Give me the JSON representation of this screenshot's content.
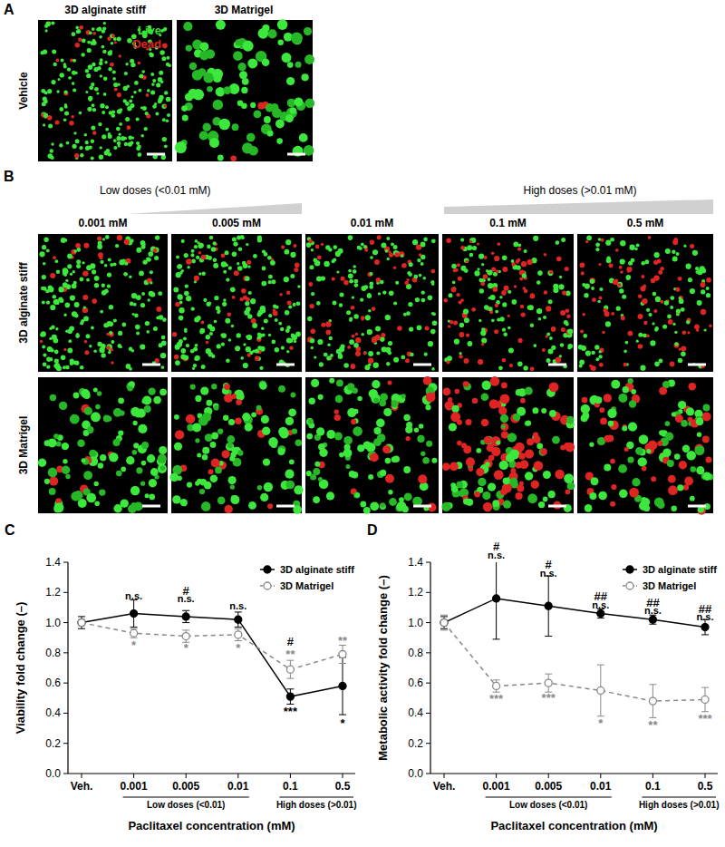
{
  "figure": {
    "A": {
      "label": "A",
      "columns": [
        "3D alginate stiff",
        "3D Matrigel"
      ],
      "row": "Vehicle",
      "legend": [
        {
          "text": "Live",
          "color": "#33dd33"
        },
        {
          "text": "Dead",
          "color": "#e02424"
        }
      ]
    },
    "B": {
      "label": "B",
      "ranges": [
        "Low doses (<0.01 mM)",
        "High doses (>0.01 mM)"
      ],
      "columns": [
        "0.001 mM",
        "0.005 mM",
        "0.01 mM",
        "0.1 mM",
        "0.5 mM"
      ],
      "rows": [
        "3D alginate stiff",
        "3D Matrigel"
      ]
    }
  },
  "chart_data": [
    {
      "type": "line",
      "panel": "C",
      "ylabel": "Viability fold change (–)",
      "xlabel": "Paclitaxel concentration (mM)",
      "categories": [
        "Veh.",
        "0.001",
        "0.005",
        "0.01",
        "0.1",
        "0.5"
      ],
      "ylim": [
        0,
        1.4
      ],
      "yticks": [
        {
          "value": 0,
          "label": "0.0"
        },
        {
          "value": 0.2,
          "label": "0.2"
        },
        {
          "value": 0.4,
          "label": "0.4"
        },
        {
          "value": 0.6,
          "label": "0.6"
        },
        {
          "value": 0.8,
          "label": "0.8"
        },
        {
          "value": 1,
          "label": "1.0"
        },
        {
          "value": 1.2,
          "label": "1.2"
        },
        {
          "value": 1.4,
          "label": "1.4"
        }
      ],
      "legend": "top-right",
      "grid": false,
      "series": [
        {
          "name": "3D alginate stiff",
          "color": "#000000",
          "marker": "circle",
          "line_style": "solid",
          "values": [
            1.0,
            1.06,
            1.04,
            1.02,
            0.51,
            0.58
          ],
          "errors": [
            0.04,
            0.09,
            0.04,
            0.05,
            0.05,
            0.19
          ]
        },
        {
          "name": "3D Matrigel",
          "color": "#888888",
          "marker": "open-circle",
          "line_style": "dashed",
          "values": [
            1.0,
            0.93,
            0.91,
            0.92,
            0.69,
            0.79
          ],
          "errors": [
            0.02,
            0.03,
            0.04,
            0.04,
            0.06,
            0.06
          ]
        }
      ],
      "annotations": [
        {
          "category": "0.001",
          "text": "n.s.",
          "y": 1.18,
          "color": "#000000"
        },
        {
          "category": "0.005",
          "text": "#",
          "y": 1.21,
          "color": "#000000"
        },
        {
          "category": "0.005",
          "text": "n.s.",
          "y": 1.16,
          "color": "#000000"
        },
        {
          "category": "0.01",
          "text": "n.s.",
          "y": 1.11,
          "color": "#000000"
        },
        {
          "category": "0.1",
          "text": "#",
          "y": 0.87,
          "color": "#000000"
        },
        {
          "category": "0.001",
          "text": "*",
          "y": 0.85,
          "color": "#888888"
        },
        {
          "category": "0.005",
          "text": "*",
          "y": 0.83,
          "color": "#888888"
        },
        {
          "category": "0.01",
          "text": "*",
          "y": 0.83,
          "color": "#888888"
        },
        {
          "category": "0.1",
          "text": "**",
          "y": 0.79,
          "color": "#888888"
        },
        {
          "category": "0.5",
          "text": "**",
          "y": 0.88,
          "color": "#888888"
        },
        {
          "category": "0.1",
          "text": "***",
          "y": 0.41,
          "color": "#000000"
        },
        {
          "category": "0.5",
          "text": "*",
          "y": 0.33,
          "color": "#000000"
        }
      ],
      "groups": [
        {
          "label": "Low doses (<0.01)",
          "from": "0.001",
          "to": "0.01"
        },
        {
          "label": "High doses (>0.01)",
          "from": "0.1",
          "to": "0.5"
        }
      ]
    },
    {
      "type": "line",
      "panel": "D",
      "ylabel": "Metabolic activity fold change (–)",
      "xlabel": "Paclitaxel concentration (mM)",
      "categories": [
        "Veh.",
        "0.001",
        "0.005",
        "0.01",
        "0.1",
        "0.5"
      ],
      "ylim": [
        0,
        1.4
      ],
      "yticks": [
        {
          "value": 0,
          "label": "0.0"
        },
        {
          "value": 0.2,
          "label": "0.2"
        },
        {
          "value": 0.4,
          "label": "0.4"
        },
        {
          "value": 0.6,
          "label": "0.6"
        },
        {
          "value": 0.8,
          "label": "0.8"
        },
        {
          "value": 1,
          "label": "1.0"
        },
        {
          "value": 1.2,
          "label": "1.2"
        },
        {
          "value": 1.4,
          "label": "1.4"
        }
      ],
      "legend": "top-right",
      "grid": false,
      "series": [
        {
          "name": "3D alginate stiff",
          "color": "#000000",
          "marker": "circle",
          "line_style": "solid",
          "values": [
            1.0,
            1.16,
            1.11,
            1.06,
            1.02,
            0.97
          ],
          "errors": [
            0.04,
            0.27,
            0.2,
            0.03,
            0.03,
            0.05
          ]
        },
        {
          "name": "3D Matrigel",
          "color": "#888888",
          "marker": "open-circle",
          "line_style": "dashed",
          "values": [
            1.0,
            0.58,
            0.6,
            0.55,
            0.48,
            0.49
          ],
          "errors": [
            0.05,
            0.04,
            0.06,
            0.17,
            0.11,
            0.08
          ]
        }
      ],
      "annotations": [
        {
          "category": "0.001",
          "text": "#",
          "y": 1.5,
          "color": "#000000"
        },
        {
          "category": "0.001",
          "text": "n.s.",
          "y": 1.45,
          "color": "#000000"
        },
        {
          "category": "0.005",
          "text": "#",
          "y": 1.38,
          "color": "#000000"
        },
        {
          "category": "0.005",
          "text": "n.s.",
          "y": 1.33,
          "color": "#000000"
        },
        {
          "category": "0.01",
          "text": "##",
          "y": 1.17,
          "color": "#000000"
        },
        {
          "category": "0.01",
          "text": "n.s.",
          "y": 1.12,
          "color": "#000000"
        },
        {
          "category": "0.1",
          "text": "##",
          "y": 1.13,
          "color": "#000000"
        },
        {
          "category": "0.1",
          "text": "n.s.",
          "y": 1.08,
          "color": "#000000"
        },
        {
          "category": "0.5",
          "text": "##",
          "y": 1.09,
          "color": "#000000"
        },
        {
          "category": "0.5",
          "text": "n.s.",
          "y": 1.04,
          "color": "#000000"
        },
        {
          "category": "0.001",
          "text": "***",
          "y": 0.49,
          "color": "#888888"
        },
        {
          "category": "0.005",
          "text": "***",
          "y": 0.5,
          "color": "#888888"
        },
        {
          "category": "0.01",
          "text": "*",
          "y": 0.33,
          "color": "#888888"
        },
        {
          "category": "0.1",
          "text": "**",
          "y": 0.32,
          "color": "#888888"
        },
        {
          "category": "0.5",
          "text": "***",
          "y": 0.36,
          "color": "#888888"
        }
      ],
      "groups": [
        {
          "label": "Low doses (<0.01)",
          "from": "0.001",
          "to": "0.01"
        },
        {
          "label": "High doses (>0.01)",
          "from": "0.1",
          "to": "0.5"
        }
      ]
    }
  ]
}
